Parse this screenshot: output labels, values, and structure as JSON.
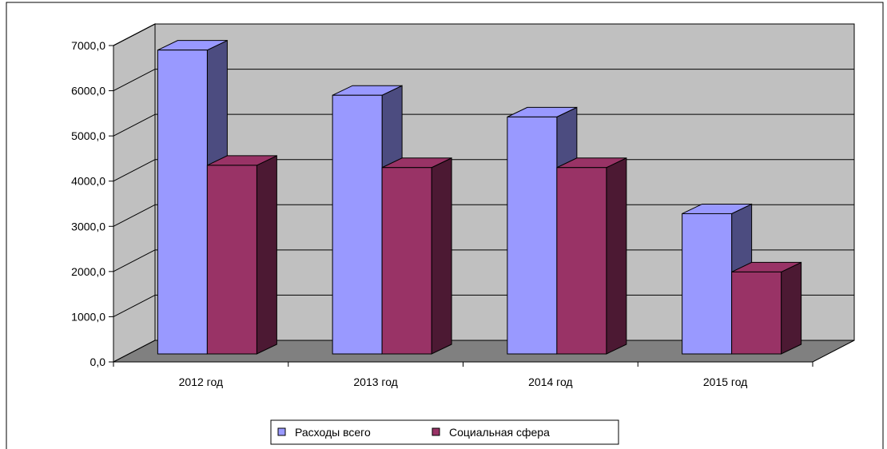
{
  "chart_data": {
    "type": "bar",
    "categories": [
      "2012 год",
      "2013 год",
      "2014 год",
      "2015 год"
    ],
    "series": [
      {
        "name": "Расходы всего",
        "values": [
          6900,
          5900,
          5420,
          3280
        ],
        "color": "#9999ff",
        "side_color": "#4c4c80"
      },
      {
        "name": "Социальная сфера",
        "values": [
          4350,
          4300,
          4300,
          1990
        ],
        "color": "#993366",
        "side_color": "#4c1933"
      }
    ],
    "y_ticks": [
      "0,0",
      "1000,0",
      "2000,0",
      "3000,0",
      "4000,0",
      "5000,0",
      "6000,0",
      "7000,0"
    ],
    "ylim": [
      0,
      7000
    ],
    "grid": true,
    "legend_position": "bottom",
    "wall_color": "#c0c0c0",
    "floor_color": "#808080"
  }
}
